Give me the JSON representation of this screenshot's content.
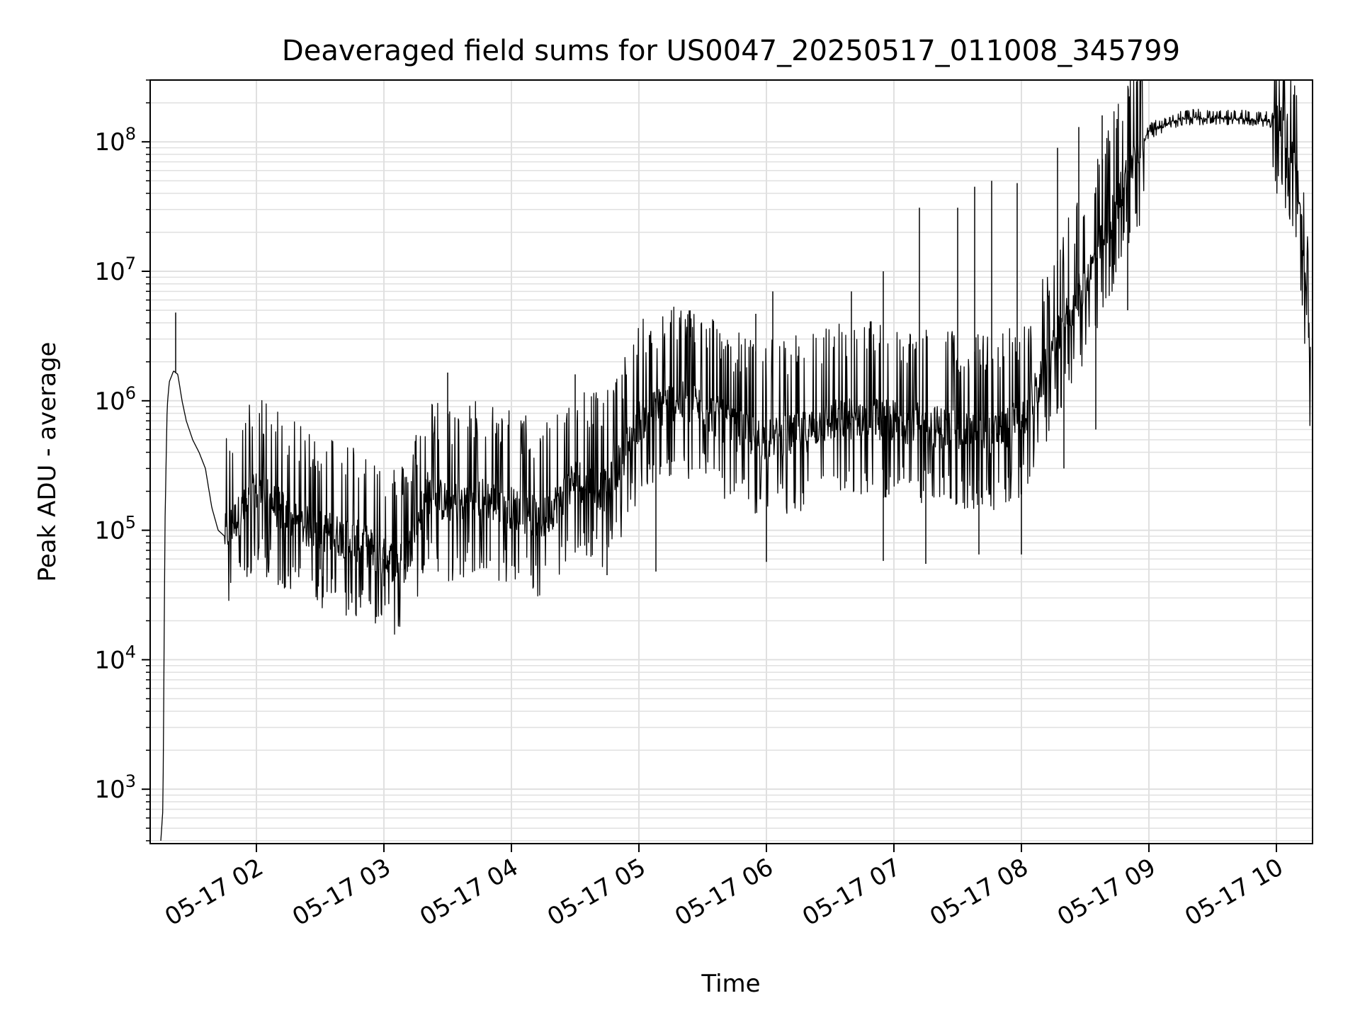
{
  "chart_data": {
    "type": "line",
    "title": "Deaveraged field sums for US0047_20250517_011008_345799",
    "xlabel": "Time",
    "ylabel": "Peak ADU - average",
    "yscale": "log",
    "grid": true,
    "line_color": "#000000",
    "grid_color": "#e0e0e0",
    "xlim": [
      "2025-05-17T01:10",
      "2025-05-17T10:17"
    ],
    "ylim": [
      380,
      300000000
    ],
    "x_ticks": [
      "05-17 02",
      "05-17 03",
      "05-17 04",
      "05-17 05",
      "05-17 06",
      "05-17 07",
      "05-17 08",
      "05-17 09",
      "05-17 10"
    ],
    "x_tick_times": [
      "2025-05-17T02:00",
      "2025-05-17T03:00",
      "2025-05-17T04:00",
      "2025-05-17T05:00",
      "2025-05-17T06:00",
      "2025-05-17T07:00",
      "2025-05-17T08:00",
      "2025-05-17T09:00",
      "2025-05-17T10:00"
    ],
    "y_ticks": [
      {
        "base": "10",
        "exp": "3",
        "value": 1000
      },
      {
        "base": "10",
        "exp": "4",
        "value": 10000
      },
      {
        "base": "10",
        "exp": "5",
        "value": 100000
      },
      {
        "base": "10",
        "exp": "6",
        "value": 1000000
      },
      {
        "base": "10",
        "exp": "7",
        "value": 10000000
      },
      {
        "base": "10",
        "exp": "8",
        "value": 100000000
      }
    ],
    "series": [
      {
        "x": [
          "2025-05-17T01:15",
          "2025-05-17T01:16",
          "2025-05-17T01:17",
          "2025-05-17T01:18",
          "2025-05-17T01:19",
          "2025-05-17T01:21",
          "2025-05-17T01:23",
          "2025-05-17T01:25",
          "2025-05-17T01:27",
          "2025-05-17T01:30",
          "2025-05-17T01:33",
          "2025-05-17T01:36",
          "2025-05-17T01:39",
          "2025-05-17T01:42",
          "2025-05-17T01:45",
          "2025-05-17T01:50",
          "2025-05-17T01:55",
          "2025-05-17T02:00",
          "2025-05-17T02:10",
          "2025-05-17T02:20",
          "2025-05-17T02:30",
          "2025-05-17T02:40",
          "2025-05-17T02:50",
          "2025-05-17T03:00",
          "2025-05-17T03:10",
          "2025-05-17T03:20",
          "2025-05-17T03:30",
          "2025-05-17T03:45",
          "2025-05-17T04:00",
          "2025-05-17T04:15",
          "2025-05-17T04:30",
          "2025-05-17T04:45",
          "2025-05-17T05:00",
          "2025-05-17T05:15",
          "2025-05-17T05:30",
          "2025-05-17T05:45",
          "2025-05-17T06:00",
          "2025-05-17T06:15",
          "2025-05-17T06:30",
          "2025-05-17T06:45",
          "2025-05-17T07:00",
          "2025-05-17T07:15",
          "2025-05-17T07:30",
          "2025-05-17T07:45",
          "2025-05-17T08:00",
          "2025-05-17T08:10",
          "2025-05-17T08:20",
          "2025-05-17T08:30",
          "2025-05-17T08:40",
          "2025-05-17T08:50",
          "2025-05-17T09:00",
          "2025-05-17T09:15",
          "2025-05-17T09:30",
          "2025-05-17T09:45",
          "2025-05-17T10:00",
          "2025-05-17T10:05",
          "2025-05-17T10:10",
          "2025-05-17T10:13",
          "2025-05-17T10:16"
        ],
        "y": [
          400,
          700,
          120000,
          900000,
          1400000,
          1700000,
          1600000,
          1000000,
          700000,
          500000,
          400000,
          300000,
          150000,
          100000,
          90000,
          120000,
          150000,
          200000,
          150000,
          110000,
          100000,
          90000,
          80000,
          60000,
          55000,
          200000,
          160000,
          180000,
          150000,
          120000,
          250000,
          200000,
          700000,
          1000000,
          900000,
          600000,
          500000,
          550000,
          700000,
          750000,
          700000,
          650000,
          600000,
          550000,
          700000,
          1500000,
          4000000,
          8000000,
          20000000,
          60000000,
          120000000,
          150000000,
          155000000,
          150000000,
          145000000,
          120000000,
          60000000,
          10000000,
          2000000
        ],
        "spikes_high": [
          [
            "2025-05-17T01:22",
            4800000
          ],
          [
            "2025-05-17T03:30",
            1650000
          ],
          [
            "2025-05-17T04:30",
            1600000
          ],
          [
            "2025-05-17T05:15",
            2200000
          ],
          [
            "2025-05-17T05:55",
            4700000
          ],
          [
            "2025-05-17T06:03",
            7000000
          ],
          [
            "2025-05-17T06:40",
            7000000
          ],
          [
            "2025-05-17T06:55",
            10000000
          ],
          [
            "2025-05-17T07:12",
            31000000
          ],
          [
            "2025-05-17T07:30",
            31000000
          ],
          [
            "2025-05-17T07:38",
            45000000
          ],
          [
            "2025-05-17T07:46",
            50000000
          ],
          [
            "2025-05-17T07:58",
            48000000
          ],
          [
            "2025-05-17T08:17",
            90000000
          ],
          [
            "2025-05-17T08:27",
            130000000
          ],
          [
            "2025-05-17T08:38",
            160000000
          ],
          [
            "2025-05-17T08:45",
            150000000
          ]
        ],
        "spikes_low": [
          [
            "2025-05-17T02:15",
            44000
          ],
          [
            "2025-05-17T02:30",
            50000
          ],
          [
            "2025-05-17T03:00",
            37000
          ],
          [
            "2025-05-17T03:10",
            50000
          ],
          [
            "2025-05-17T03:50",
            58000
          ],
          [
            "2025-05-17T04:45",
            45000
          ],
          [
            "2025-05-17T05:08",
            48000
          ],
          [
            "2025-05-17T06:00",
            57000
          ],
          [
            "2025-05-17T06:55",
            58000
          ],
          [
            "2025-05-17T07:15",
            55000
          ],
          [
            "2025-05-17T07:40",
            65000
          ],
          [
            "2025-05-17T08:00",
            65000
          ],
          [
            "2025-05-17T08:20",
            300000
          ],
          [
            "2025-05-17T08:35",
            600000
          ],
          [
            "2025-05-17T08:50",
            5000000
          ]
        ]
      }
    ]
  }
}
